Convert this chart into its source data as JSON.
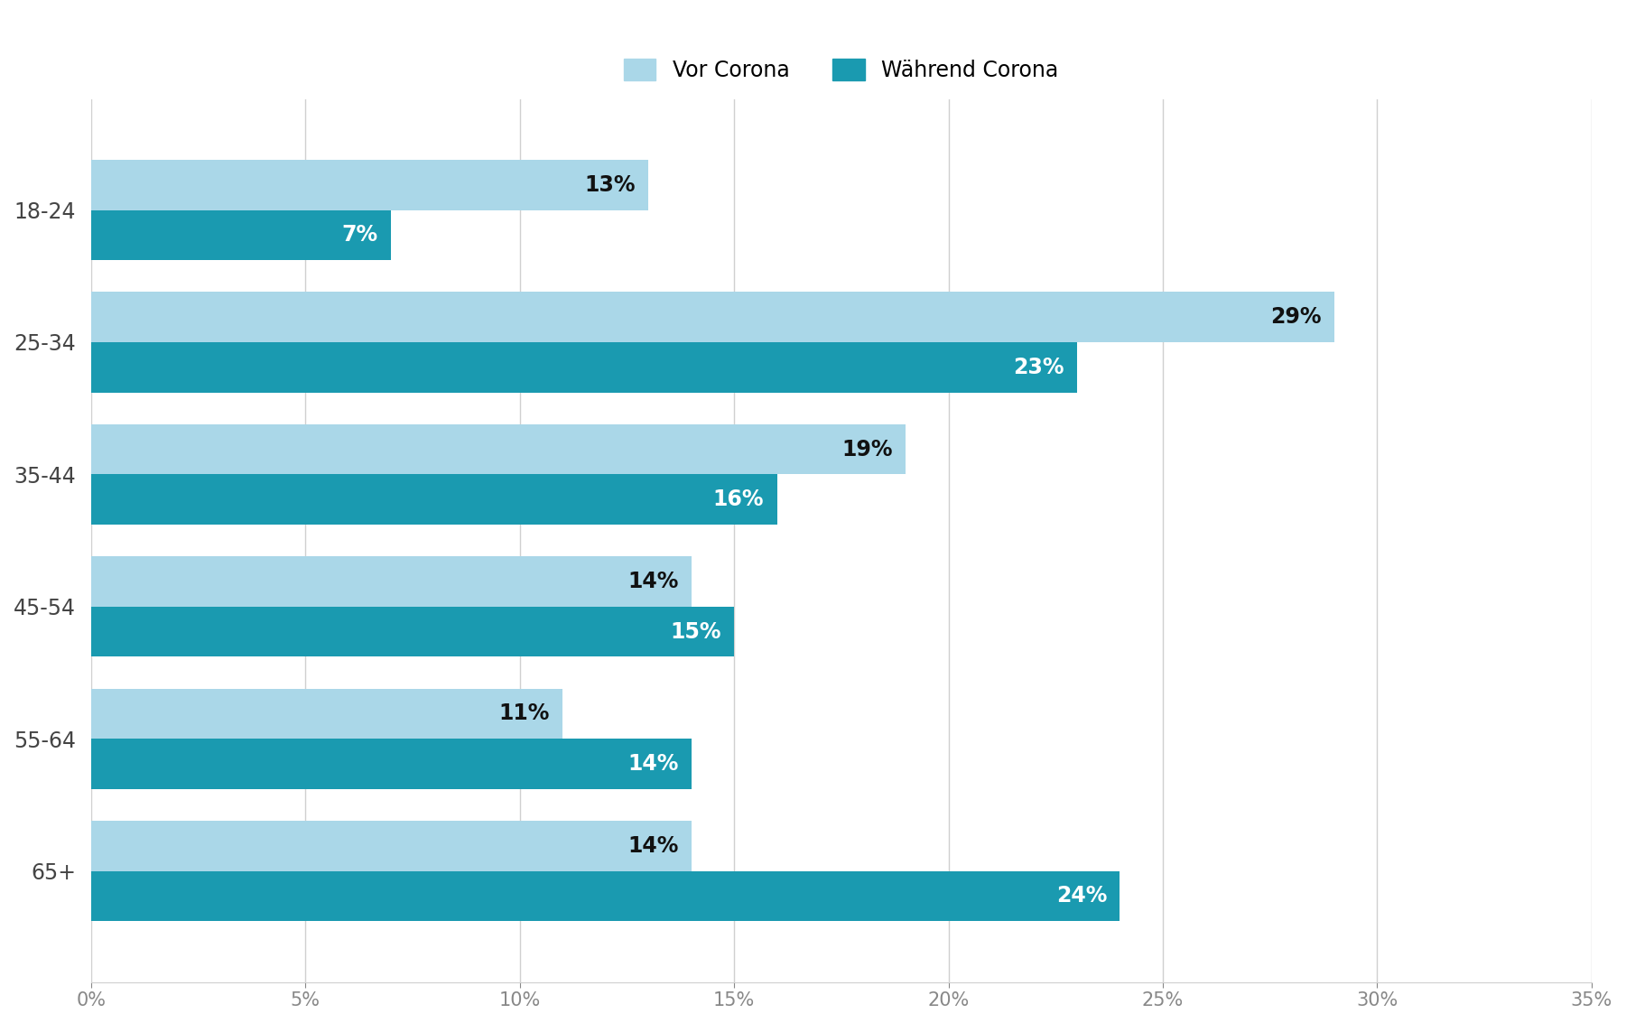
{
  "categories": [
    "65+",
    "55-64",
    "45-54",
    "35-44",
    "25-34",
    "18-24"
  ],
  "vor_corona": [
    14,
    11,
    14,
    19,
    29,
    13
  ],
  "waehrend_corona": [
    24,
    14,
    15,
    16,
    23,
    7
  ],
  "color_vor": "#aad7e8",
  "color_waehrend": "#1a9ab0",
  "legend_labels": [
    "Vor Corona",
    "Während Corona"
  ],
  "xlim": [
    0,
    35
  ],
  "xticks": [
    0,
    5,
    10,
    15,
    20,
    25,
    30,
    35
  ],
  "xtick_labels": [
    "0%",
    "5%",
    "10%",
    "15%",
    "20%",
    "25%",
    "30%",
    "35%"
  ],
  "bar_height": 0.38,
  "bar_gap": 0.0,
  "background_color": "#ffffff",
  "grid_color": "#d0d0d0",
  "label_fontsize": 17,
  "tick_fontsize": 15,
  "legend_fontsize": 17,
  "ytick_fontsize": 17,
  "vor_label_color": "#111111",
  "waehrend_label_color": "#ffffff"
}
